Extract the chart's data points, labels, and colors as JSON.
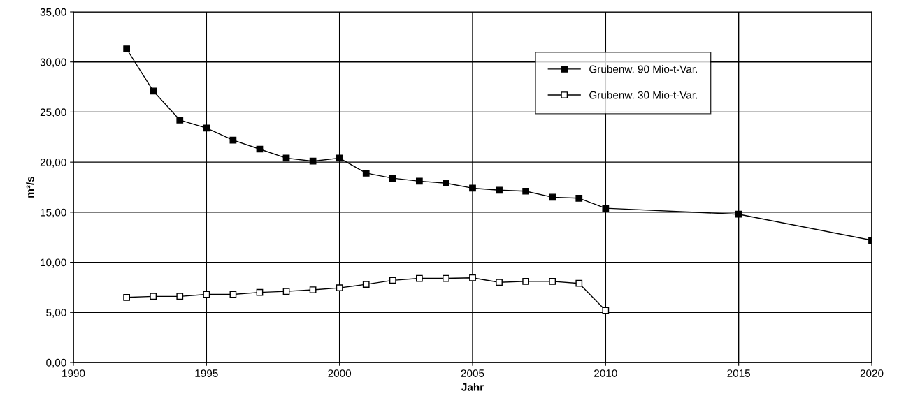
{
  "chart_data": {
    "type": "line",
    "xlabel": "Jahr",
    "ylabel": "m³/s",
    "xlim": [
      1990,
      2020
    ],
    "xticks": [
      1990,
      1995,
      2000,
      2005,
      2010,
      2015,
      2020
    ],
    "ylim": [
      0,
      35
    ],
    "yticks": [
      {
        "value": 0,
        "label": "0,00"
      },
      {
        "value": 5,
        "label": "5,00"
      },
      {
        "value": 10,
        "label": "10,00"
      },
      {
        "value": 15,
        "label": "15,00"
      },
      {
        "value": 20,
        "label": "20,00"
      },
      {
        "value": 25,
        "label": "25,00"
      },
      {
        "value": 30,
        "label": "30,00"
      },
      {
        "value": 35,
        "label": "35,00"
      }
    ],
    "grid": true,
    "legend": "top right",
    "marker": "square",
    "line_style": "solid",
    "series": [
      {
        "name": "Grubenw. 90 Mio-t-Var.",
        "color": "#000000",
        "x": [
          1992,
          1993,
          1994,
          1995,
          1996,
          1997,
          1998,
          1999,
          2000,
          2001,
          2002,
          2003,
          2004,
          2005,
          2006,
          2007,
          2008,
          2009,
          2010,
          2015,
          2020
        ],
        "values": [
          31.3,
          27.1,
          24.2,
          23.4,
          22.2,
          21.3,
          20.4,
          20.1,
          20.4,
          18.9,
          18.4,
          18.1,
          17.9,
          17.4,
          17.2,
          17.1,
          16.5,
          16.4,
          15.4,
          14.8,
          12.2
        ]
      },
      {
        "name": "Grubenw. 30 Mio-t-Var.",
        "color": "#000000",
        "x": [
          1992,
          1993,
          1994,
          1995,
          1996,
          1997,
          1998,
          1999,
          2000,
          2001,
          2002,
          2003,
          2004,
          2005,
          2006,
          2007,
          2008,
          2009,
          2010
        ],
        "values": [
          6.5,
          6.6,
          6.6,
          6.8,
          6.8,
          7.0,
          7.1,
          7.25,
          7.45,
          7.8,
          8.2,
          8.4,
          8.4,
          8.45,
          8.0,
          8.1,
          8.1,
          7.9,
          5.2
        ]
      }
    ]
  }
}
